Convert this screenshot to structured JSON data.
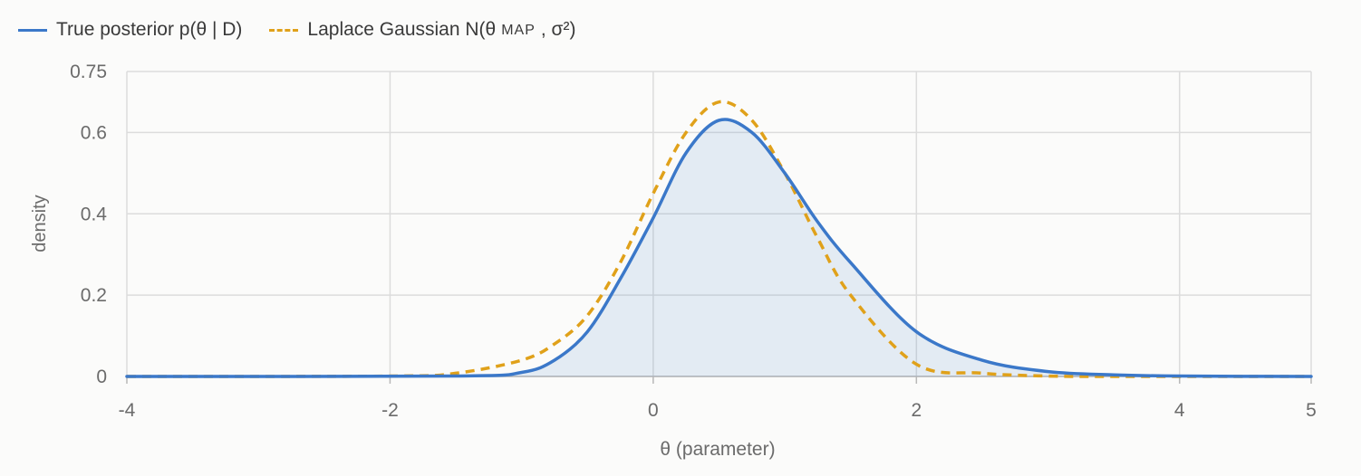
{
  "chart_data": {
    "type": "line",
    "xlabel": "θ (parameter)",
    "ylabel": "density",
    "xlim": [
      -4,
      5
    ],
    "ylim": [
      0,
      0.75
    ],
    "xticks": [
      -4,
      -2,
      0,
      2,
      4,
      5
    ],
    "yticks": [
      0,
      0.2,
      0.4,
      0.6,
      0.75
    ],
    "ytick_labels": [
      "0",
      "0.2",
      "0.4",
      "0.6",
      "0.75"
    ],
    "grid": true,
    "legend_position": "top-left",
    "series": [
      {
        "name": "True posterior p(θ | D)",
        "color": "#3b78c9",
        "style": "solid",
        "filled": true,
        "x": [
          -4,
          -1.5,
          -1,
          -0.75,
          -0.5,
          -0.25,
          0,
          0.25,
          0.5,
          0.75,
          1,
          1.25,
          1.5,
          2,
          2.5,
          3,
          3.5,
          4,
          5
        ],
        "y": [
          0,
          0.001,
          0.01,
          0.04,
          0.11,
          0.24,
          0.39,
          0.55,
          0.63,
          0.6,
          0.5,
          0.38,
          0.28,
          0.11,
          0.04,
          0.012,
          0.004,
          0.001,
          0
        ]
      },
      {
        "name_prefix": "Laplace Gaussian N(θ",
        "name_sub": "MAP",
        "name_suffix": ", σ²)",
        "color": "#e0a11a",
        "style": "dashed",
        "filled": false,
        "x": [
          -4,
          -2,
          -1.5,
          -1,
          -0.75,
          -0.5,
          -0.25,
          0,
          0.25,
          0.5,
          0.75,
          1,
          1.25,
          1.5,
          2,
          2.5,
          3,
          3.5,
          5
        ],
        "y": [
          0,
          0.001,
          0.008,
          0.04,
          0.08,
          0.15,
          0.28,
          0.45,
          0.6,
          0.675,
          0.63,
          0.5,
          0.34,
          0.2,
          0.03,
          0.008,
          0.001,
          0,
          0
        ]
      }
    ]
  }
}
